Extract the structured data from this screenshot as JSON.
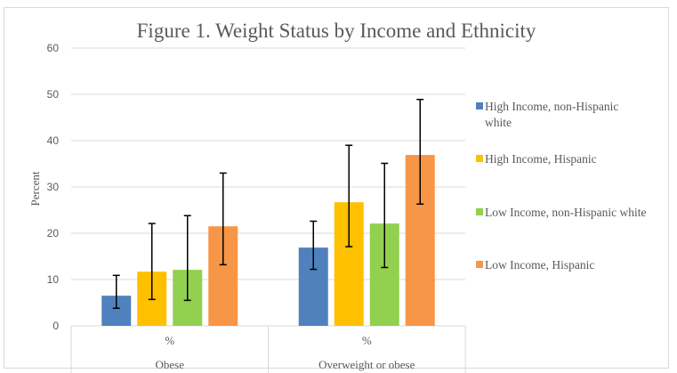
{
  "chart_data": {
    "type": "bar",
    "title": "Figure 1. Weight Status by Income and Ethnicity",
    "xlabel": "",
    "ylabel": "Percent",
    "ylim": [
      0,
      60
    ],
    "yticks": [
      0,
      10,
      20,
      30,
      40,
      50,
      60
    ],
    "grid": true,
    "legend_position": "right",
    "categories": [
      {
        "inner": "%",
        "outer": "Obese"
      },
      {
        "inner": "%",
        "outer": "Overweight or obese"
      }
    ],
    "series": [
      {
        "name": "High Income, non-Hispanic white",
        "legend_lines": [
          "High Income, non-Hispanic",
          "white"
        ],
        "color": "#4f81bd",
        "values": [
          6.5,
          16.9
        ],
        "error_low": [
          3.8,
          12.2
        ],
        "error_high": [
          10.9,
          22.6
        ]
      },
      {
        "name": "High Income, Hispanic",
        "legend_lines": [
          "High Income, Hispanic"
        ],
        "color": "#ffc000",
        "values": [
          11.7,
          26.7
        ],
        "error_low": [
          5.7,
          17.1
        ],
        "error_high": [
          22.1,
          39.0
        ]
      },
      {
        "name": "Low Income, non-Hispanic white",
        "legend_lines": [
          "Low Income, non-Hispanic white"
        ],
        "color": "#92d050",
        "values": [
          12.1,
          22.1
        ],
        "error_low": [
          5.5,
          12.6
        ],
        "error_high": [
          23.8,
          35.1
        ]
      },
      {
        "name": "Low Income, Hispanic",
        "legend_lines": [
          "Low Income, Hispanic"
        ],
        "color": "#f79646",
        "values": [
          21.5,
          36.9
        ],
        "error_low": [
          13.2,
          26.3
        ],
        "error_high": [
          33.0,
          48.9
        ]
      }
    ]
  }
}
